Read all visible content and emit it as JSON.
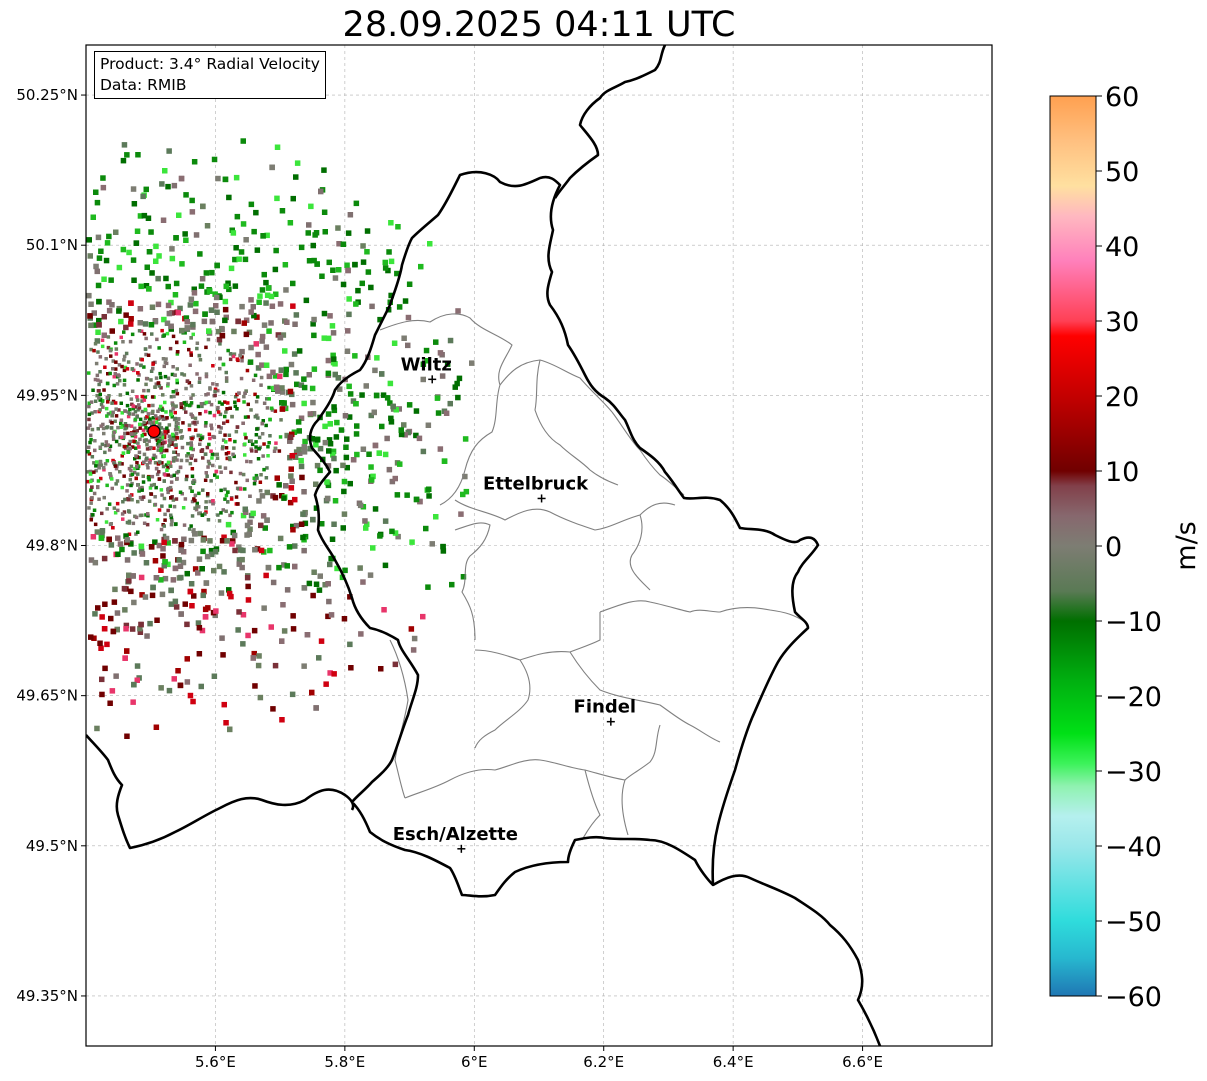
{
  "title": "28.09.2025 04:11 UTC",
  "info_box": {
    "product": "Product: 3.4° Radial Velocity",
    "data": "Data: RMIB"
  },
  "axes": {
    "x_ticks": [
      "5.6°E",
      "5.8°E",
      "6°E",
      "6.2°E",
      "6.4°E",
      "6.6°E"
    ],
    "x_values": [
      5.6,
      5.8,
      6.0,
      6.2,
      6.4,
      6.6
    ],
    "y_ticks": [
      "50.25°N",
      "50.1°N",
      "49.95°N",
      "49.8°N",
      "49.65°N",
      "49.5°N",
      "49.35°N"
    ],
    "y_values": [
      50.25,
      50.1,
      49.95,
      49.8,
      49.65,
      49.5,
      49.35
    ],
    "lon_range": [
      5.4,
      6.8
    ],
    "lat_range": [
      49.3,
      50.3
    ],
    "grid": true
  },
  "cities": [
    {
      "name": "Wiltz",
      "lon": 5.935,
      "lat": 49.966
    },
    {
      "name": "Ettelbruck",
      "lon": 6.104,
      "lat": 49.847
    },
    {
      "name": "Findel",
      "lon": 6.211,
      "lat": 49.624
    },
    {
      "name": "Esch/Alzette",
      "lon": 5.98,
      "lat": 49.497
    }
  ],
  "radar_site": {
    "lon": 5.505,
    "lat": 49.914,
    "color": "#ff0000"
  },
  "colorbar": {
    "label": "m/s",
    "ticks": [
      "60",
      "50",
      "40",
      "30",
      "20",
      "10",
      "0",
      "−10",
      "−20",
      "−30",
      "−40",
      "−50",
      "−60"
    ],
    "tick_values": [
      60,
      50,
      40,
      30,
      20,
      10,
      0,
      -10,
      -20,
      -30,
      -40,
      -50,
      -60
    ],
    "range": [
      -60,
      60
    ],
    "stops": [
      {
        "v": -60,
        "c": "#1f77b4"
      },
      {
        "v": -55,
        "c": "#27b7cf"
      },
      {
        "v": -50,
        "c": "#2fdcdc"
      },
      {
        "v": -40,
        "c": "#9ae7ea"
      },
      {
        "v": -36,
        "c": "#b5f0ee"
      },
      {
        "v": -32,
        "c": "#8ff2b0"
      },
      {
        "v": -29,
        "c": "#3cf25a"
      },
      {
        "v": -25,
        "c": "#00e016"
      },
      {
        "v": -18,
        "c": "#00b010"
      },
      {
        "v": -10,
        "c": "#006f00"
      },
      {
        "v": -6,
        "c": "#5a7a55"
      },
      {
        "v": 0,
        "c": "#7d7d73"
      },
      {
        "v": 4,
        "c": "#87686e"
      },
      {
        "v": 8,
        "c": "#82404a"
      },
      {
        "v": 10,
        "c": "#700000"
      },
      {
        "v": 20,
        "c": "#c40000"
      },
      {
        "v": 28,
        "c": "#ff0000"
      },
      {
        "v": 30,
        "c": "#ff4055"
      },
      {
        "v": 38,
        "c": "#ff80bb"
      },
      {
        "v": 44,
        "c": "#ffb8c0"
      },
      {
        "v": 48,
        "c": "#ffe0a0"
      },
      {
        "v": 54,
        "c": "#ffc080"
      },
      {
        "v": 60,
        "c": "#ffa050"
      }
    ]
  },
  "colors": {
    "border": "#000000",
    "canton_border": "#808080",
    "grid": "#b0b0b0",
    "echo_palette": [
      "#006e00",
      "#0b8a0b",
      "#1fba1f",
      "#3be53b",
      "#5c7a5a",
      "#6b8060",
      "#807070",
      "#8a6d72",
      "#7a3038",
      "#700000",
      "#a00000",
      "#d00010",
      "#e8356a",
      "#7d7d73"
    ]
  },
  "icons": {
    "city_marker": "crosshair-plus-icon",
    "radar": "radar-site-dot-icon"
  }
}
